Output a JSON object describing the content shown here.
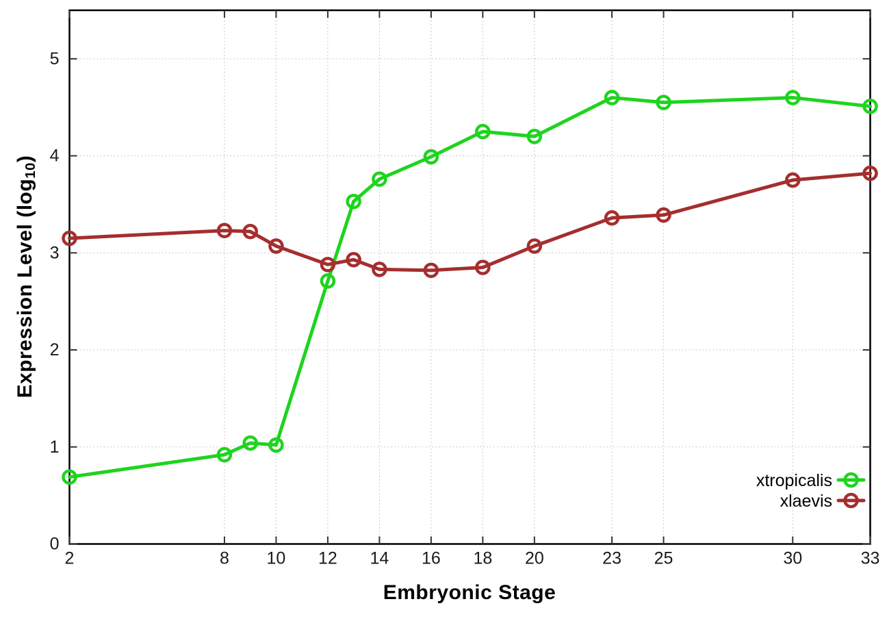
{
  "figure": {
    "xlabel": "Embryonic Stage",
    "ylabel_main": "Expression Level (log",
    "ylabel_sub": "10",
    "ylabel_suffix": ")"
  },
  "chart_data": {
    "type": "line",
    "title": "",
    "xlabel": "Embryonic Stage",
    "ylabel": "Expression Level (log10)",
    "x": [
      2,
      8,
      9,
      10,
      12,
      13,
      14,
      16,
      18,
      20,
      23,
      25,
      30,
      33
    ],
    "series": [
      {
        "name": "xtropicalis",
        "color": "#1ed41e",
        "marker": "open-circle",
        "values": [
          0.69,
          0.92,
          1.04,
          1.02,
          2.71,
          3.53,
          3.76,
          3.99,
          4.25,
          4.2,
          4.6,
          4.55,
          4.6,
          4.51
        ]
      },
      {
        "name": "xlaevis",
        "color": "#a52e2e",
        "marker": "open-circle",
        "values": [
          3.15,
          3.23,
          3.22,
          3.07,
          2.88,
          2.93,
          2.83,
          2.82,
          2.85,
          3.07,
          3.36,
          3.39,
          3.75,
          3.82
        ]
      }
    ],
    "x_ticks": [
      2,
      8,
      10,
      12,
      14,
      16,
      18,
      20,
      23,
      25,
      30,
      33
    ],
    "y_ticks": [
      0,
      1,
      2,
      3,
      4,
      5
    ],
    "xlim": [
      2,
      33
    ],
    "ylim": [
      0,
      5.5
    ],
    "grid": true,
    "grid_color": "#b8b8b8",
    "border_color": "#000000",
    "tick_color": "#333333",
    "legend_position": "bottom-right"
  }
}
